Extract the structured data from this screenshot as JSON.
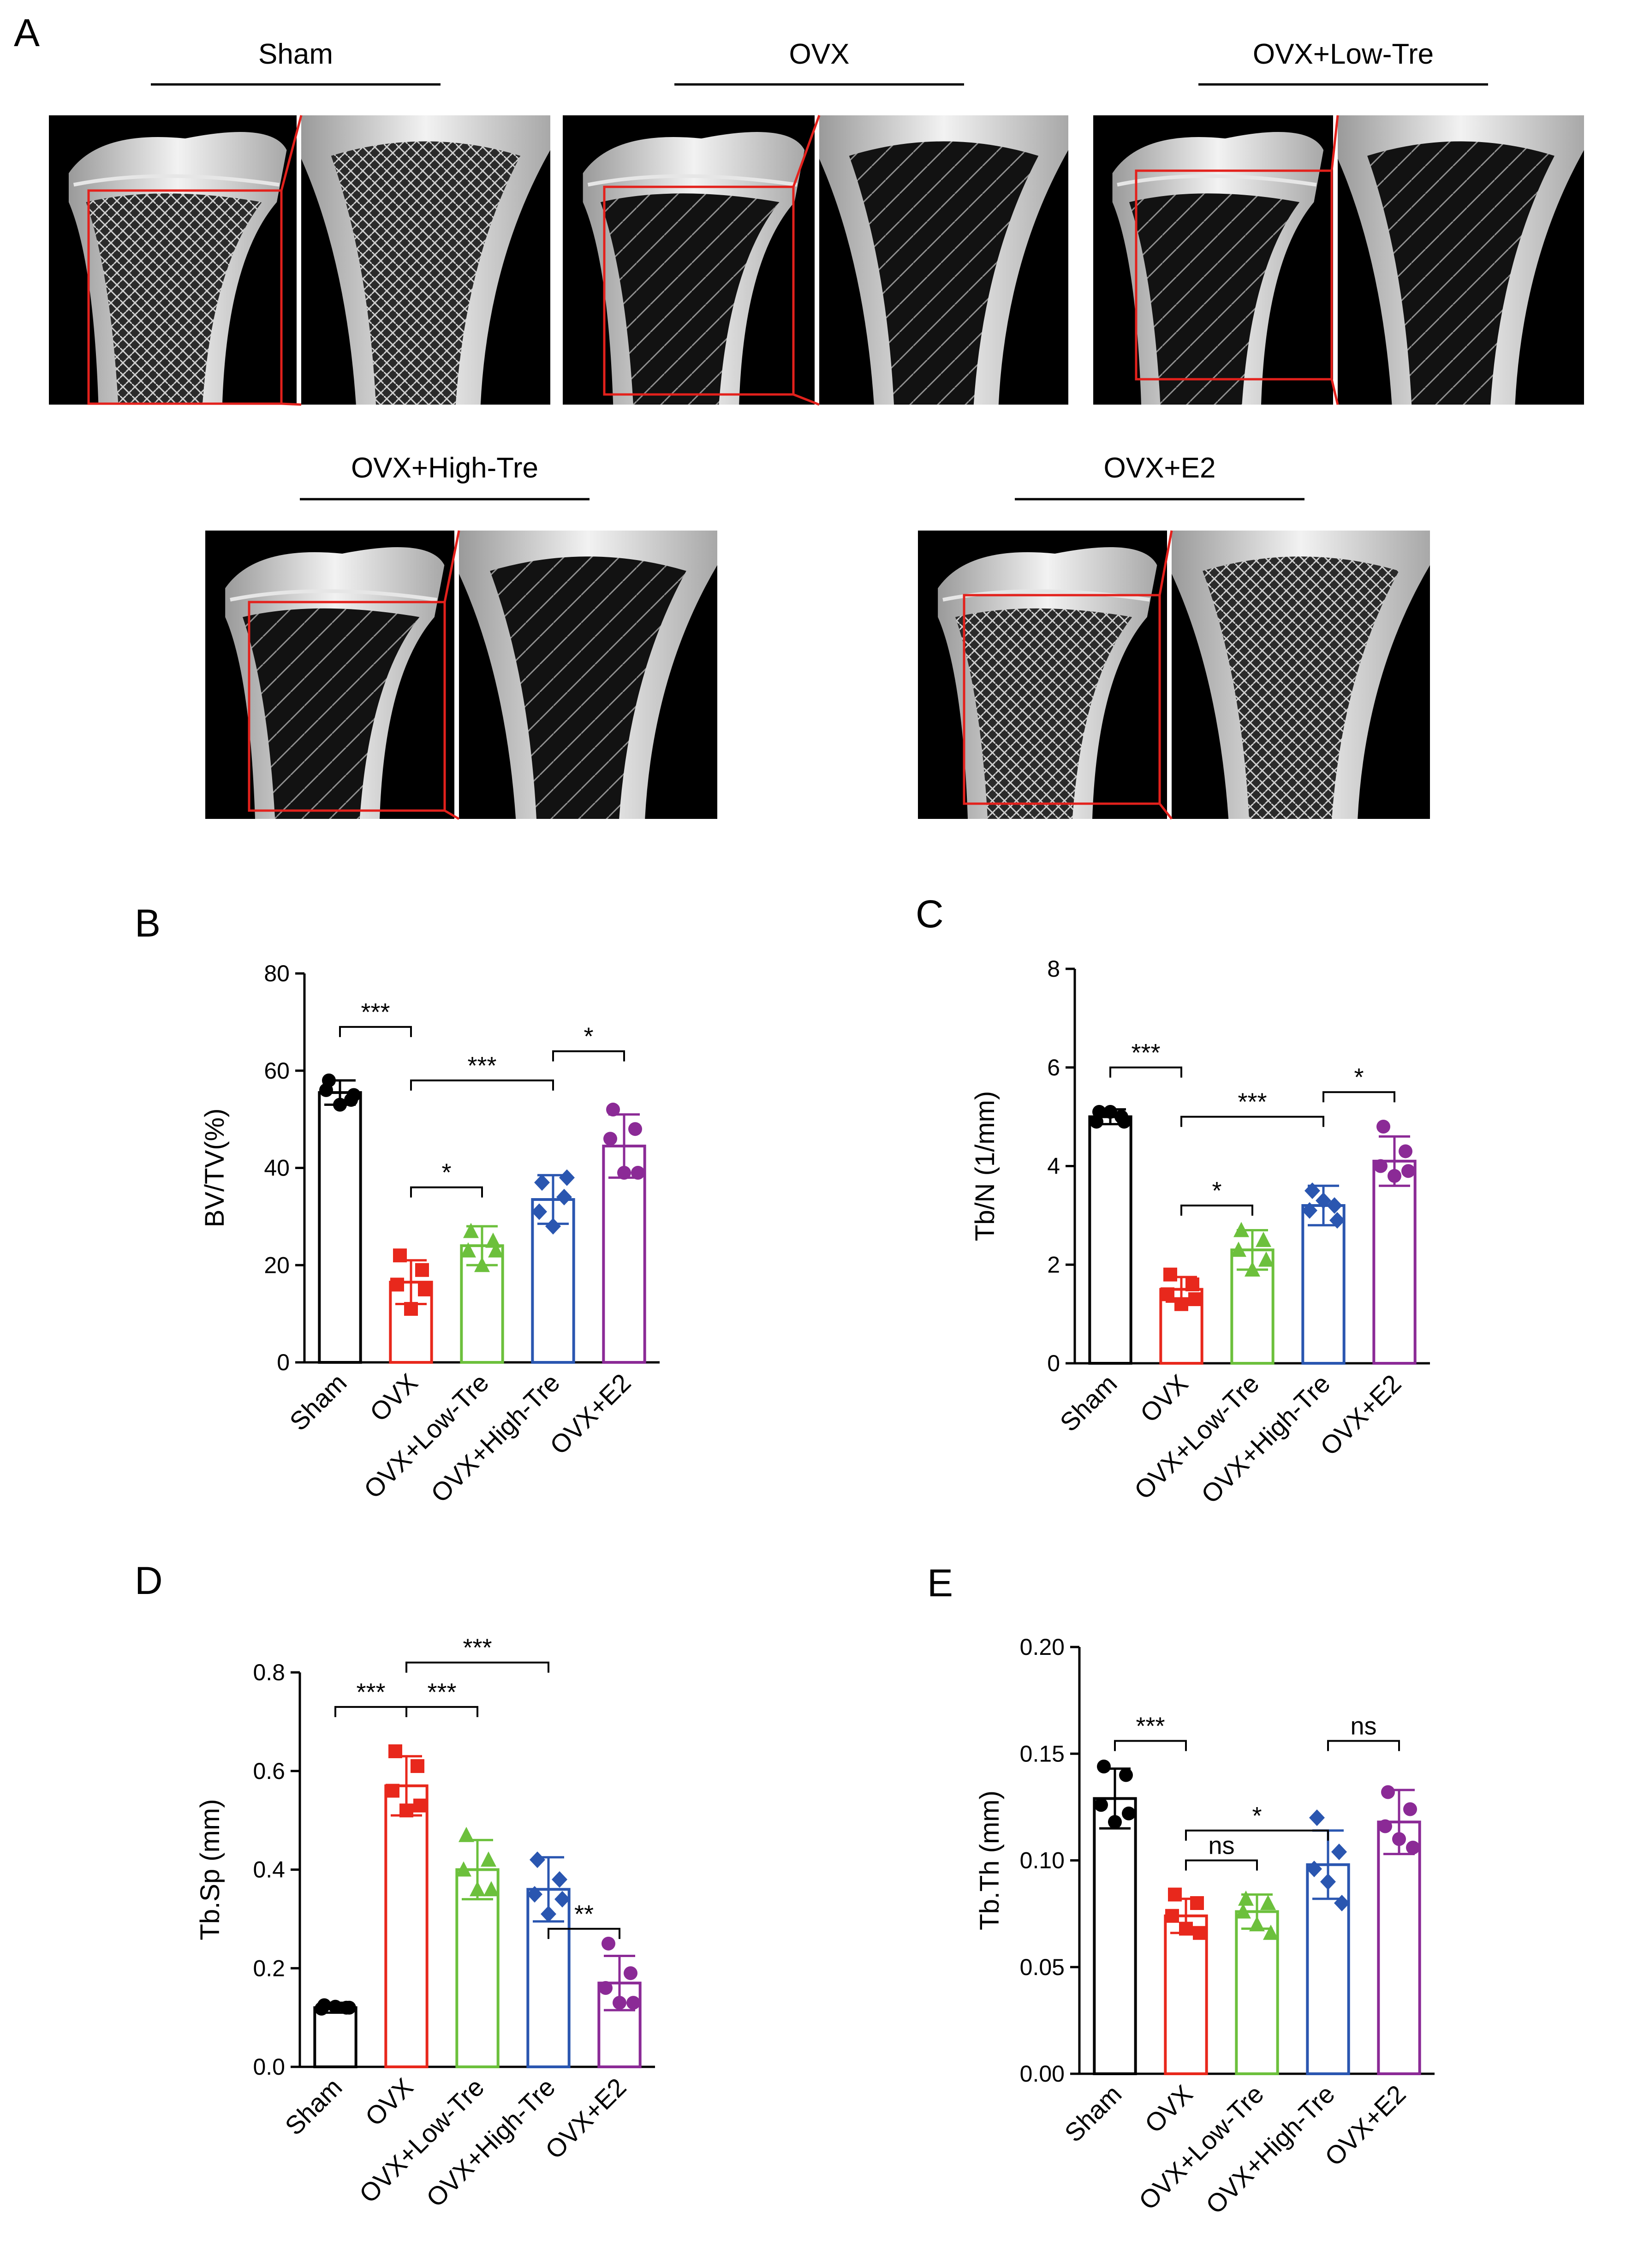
{
  "panel_labels": [
    "A",
    "B",
    "C",
    "D",
    "E"
  ],
  "panel_a": {
    "groups": [
      "Sham",
      "OVX",
      "OVX+Low-Tre",
      "OVX+High-Tre",
      "OVX+E2"
    ]
  },
  "colors": {
    "Sham": "#000000",
    "OVX": "#e8281c",
    "OVX+Low-Tre": "#6cc03c",
    "OVX+High-Tre": "#2a56b0",
    "OVX+E2": "#8b2a96",
    "roi": "#e3211c"
  },
  "chart_data": [
    {
      "panel": "B",
      "type": "bar",
      "ylabel": "BV/TV(%)",
      "categories": [
        "Sham",
        "OVX",
        "OVX+Low-Tre",
        "OVX+High-Tre",
        "OVX+E2"
      ],
      "values": [
        55.5,
        16.5,
        24.0,
        33.5,
        44.5
      ],
      "sd": [
        2.5,
        4.5,
        4.0,
        5.0,
        6.5
      ],
      "points": [
        [
          58,
          54,
          56,
          53,
          55
        ],
        [
          22,
          19,
          16,
          11,
          15
        ],
        [
          27,
          25,
          23,
          20,
          23
        ],
        [
          37,
          34,
          31,
          28,
          38
        ],
        [
          52,
          48,
          46,
          39,
          39
        ]
      ],
      "ylim": [
        0,
        80
      ],
      "yticks": [
        0,
        20,
        40,
        60,
        80
      ],
      "comparisons": [
        {
          "from": 0,
          "to": 1,
          "y": 69,
          "label": "***"
        },
        {
          "from": 1,
          "to": 3,
          "y": 58,
          "label": "***"
        },
        {
          "from": 1,
          "to": 2,
          "y": 36,
          "label": "*"
        },
        {
          "from": 3,
          "to": 4,
          "y": 64,
          "label": "*"
        }
      ]
    },
    {
      "panel": "C",
      "type": "bar",
      "ylabel": "Tb/N (1/mm)",
      "categories": [
        "Sham",
        "OVX",
        "OVX+Low-Tre",
        "OVX+High-Tre",
        "OVX+E2"
      ],
      "values": [
        5.0,
        1.5,
        2.3,
        3.2,
        4.1
      ],
      "sd": [
        0.15,
        0.25,
        0.4,
        0.4,
        0.5
      ],
      "points": [
        [
          5.1,
          5.0,
          4.9,
          5.1,
          4.9
        ],
        [
          1.8,
          1.6,
          1.4,
          1.2,
          1.3
        ],
        [
          2.7,
          2.5,
          2.3,
          1.9,
          2.1
        ],
        [
          3.5,
          3.2,
          3.1,
          3.3,
          2.9
        ],
        [
          4.8,
          4.3,
          4.0,
          3.8,
          3.9
        ]
      ],
      "ylim": [
        0,
        8
      ],
      "yticks": [
        0,
        2,
        4,
        6,
        8
      ],
      "comparisons": [
        {
          "from": 0,
          "to": 1,
          "y": 6.0,
          "label": "***"
        },
        {
          "from": 1,
          "to": 3,
          "y": 5.0,
          "label": "***"
        },
        {
          "from": 1,
          "to": 2,
          "y": 3.2,
          "label": "*"
        },
        {
          "from": 3,
          "to": 4,
          "y": 5.5,
          "label": "*"
        }
      ]
    },
    {
      "panel": "D",
      "type": "bar",
      "ylabel": "Tb.Sp (mm)",
      "categories": [
        "Sham",
        "OVX",
        "OVX+Low-Tre",
        "OVX+High-Tre",
        "OVX+E2"
      ],
      "values": [
        0.12,
        0.57,
        0.4,
        0.36,
        0.17
      ],
      "sd": [
        0.01,
        0.06,
        0.06,
        0.065,
        0.055
      ],
      "points": [
        [
          0.125,
          0.12,
          0.118,
          0.122,
          0.12
        ],
        [
          0.64,
          0.61,
          0.56,
          0.52,
          0.53
        ],
        [
          0.47,
          0.42,
          0.4,
          0.36,
          0.36
        ],
        [
          0.42,
          0.38,
          0.35,
          0.31,
          0.34
        ],
        [
          0.25,
          0.19,
          0.16,
          0.13,
          0.13
        ]
      ],
      "ylim": [
        0,
        0.8
      ],
      "yticks": [
        0.0,
        0.2,
        0.4,
        0.6,
        0.8
      ],
      "tick_decimals": 1,
      "comparisons": [
        {
          "from": 0,
          "to": 1,
          "y": 0.73,
          "label": "***"
        },
        {
          "from": 1,
          "to": 3,
          "y": 0.82,
          "label": "***"
        },
        {
          "from": 1,
          "to": 2,
          "y": 0.73,
          "label": "***"
        },
        {
          "from": 3,
          "to": 4,
          "y": 0.28,
          "label": "**"
        }
      ]
    },
    {
      "panel": "E",
      "type": "bar",
      "ylabel": "Tb.Th (mm)",
      "categories": [
        "Sham",
        "OVX",
        "OVX+Low-Tre",
        "OVX+High-Tre",
        "OVX+E2"
      ],
      "values": [
        0.129,
        0.074,
        0.076,
        0.098,
        0.118
      ],
      "sd": [
        0.014,
        0.008,
        0.008,
        0.016,
        0.015
      ],
      "points": [
        [
          0.144,
          0.14,
          0.126,
          0.118,
          0.122
        ],
        [
          0.084,
          0.08,
          0.074,
          0.068,
          0.066
        ],
        [
          0.082,
          0.08,
          0.076,
          0.07,
          0.066
        ],
        [
          0.12,
          0.104,
          0.096,
          0.09,
          0.08
        ],
        [
          0.132,
          0.124,
          0.116,
          0.11,
          0.106
        ]
      ],
      "ylim": [
        0,
        0.2
      ],
      "yticks": [
        0.0,
        0.05,
        0.1,
        0.15,
        0.2
      ],
      "tick_decimals": 2,
      "comparisons": [
        {
          "from": 0,
          "to": 1,
          "y": 0.156,
          "label": "***"
        },
        {
          "from": 1,
          "to": 3,
          "y": 0.114,
          "label": "*"
        },
        {
          "from": 1,
          "to": 2,
          "y": 0.1,
          "label": "ns"
        },
        {
          "from": 3,
          "to": 4,
          "y": 0.156,
          "label": "ns"
        }
      ]
    }
  ]
}
